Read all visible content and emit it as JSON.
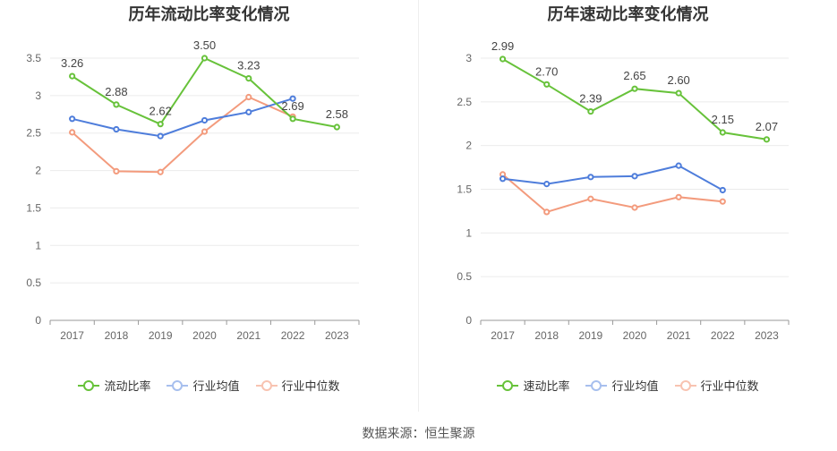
{
  "source": "数据来源：恒生聚源",
  "colors": {
    "main": "#67c23a",
    "avg": "#4e7ddb",
    "median": "#f39b7d"
  },
  "chart_data": [
    {
      "type": "line",
      "title": "历年流动比率变化情况",
      "categories": [
        "2017",
        "2018",
        "2019",
        "2020",
        "2021",
        "2022",
        "2023"
      ],
      "ylim": [
        0,
        3.5
      ],
      "yticks": [
        "0",
        "0.5",
        "1",
        "1.5",
        "2",
        "2.5",
        "3",
        "3.5"
      ],
      "grid": true,
      "legend_position": "bottom",
      "series": [
        {
          "name": "流动比率",
          "color": "#67c23a",
          "values": [
            3.26,
            2.88,
            2.62,
            3.5,
            3.23,
            2.69,
            2.58
          ],
          "labels": [
            "3.26",
            "2.88",
            "2.62",
            "3.50",
            "3.23",
            "2.69",
            "2.58"
          ]
        },
        {
          "name": "行业均值",
          "color": "#4e7ddb",
          "values": [
            2.69,
            2.55,
            2.46,
            2.67,
            2.78,
            2.96,
            null
          ]
        },
        {
          "name": "行业中位数",
          "color": "#f39b7d",
          "values": [
            2.51,
            1.99,
            1.98,
            2.52,
            2.98,
            2.72,
            null
          ]
        }
      ]
    },
    {
      "type": "line",
      "title": "历年速动比率变化情况",
      "categories": [
        "2017",
        "2018",
        "2019",
        "2020",
        "2021",
        "2022",
        "2023"
      ],
      "ylim": [
        0,
        3
      ],
      "yticks": [
        "0",
        "0.5",
        "1",
        "1.5",
        "2",
        "2.5",
        "3"
      ],
      "grid": true,
      "legend_position": "bottom",
      "series": [
        {
          "name": "速动比率",
          "color": "#67c23a",
          "values": [
            2.99,
            2.7,
            2.39,
            2.65,
            2.6,
            2.15,
            2.07
          ],
          "labels": [
            "2.99",
            "2.70",
            "2.39",
            "2.65",
            "2.60",
            "2.15",
            "2.07"
          ]
        },
        {
          "name": "行业均值",
          "color": "#4e7ddb",
          "values": [
            1.62,
            1.56,
            1.64,
            1.65,
            1.77,
            1.49,
            null
          ]
        },
        {
          "name": "行业中位数",
          "color": "#f39b7d",
          "values": [
            1.67,
            1.24,
            1.39,
            1.29,
            1.41,
            1.36,
            null
          ]
        }
      ]
    }
  ]
}
